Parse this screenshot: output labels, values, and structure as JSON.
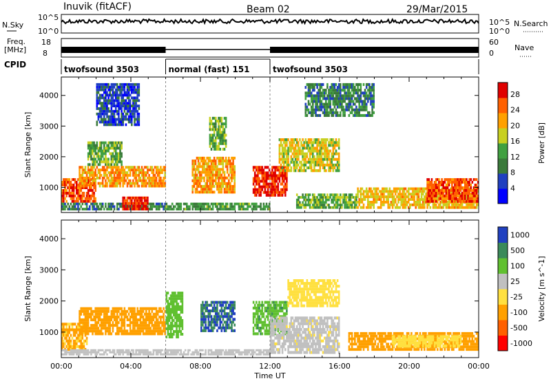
{
  "header": {
    "station": "Inuvik (fitACF)",
    "beam": "Beam 02",
    "date": "29/Mar/2015"
  },
  "strip_labels": {
    "nsky": "N.Sky",
    "nsky_tick_hi": "10^5",
    "nsky_tick_lo": "10^0",
    "nsearch": "N.Search",
    "nsearch_tick_hi": "10^5",
    "nsearch_tick_lo": "10^0",
    "freq_line1": "Freq.",
    "freq_line2": "[MHz]",
    "freq_tick_hi": "18",
    "freq_tick_lo": "8",
    "nave": "Nave",
    "nave_tick_hi": "60",
    "nave_tick_lo": "0",
    "cpid": "CPID"
  },
  "cpid_segments": [
    {
      "label": "twofsound 3503",
      "start_h": 0,
      "end_h": 6
    },
    {
      "label": "normal (fast) 151",
      "start_h": 6,
      "end_h": 12
    },
    {
      "label": "twofsound 3503",
      "start_h": 12,
      "end_h": 24
    }
  ],
  "chart_data": [
    {
      "type": "heatmap",
      "panel": "power",
      "ylabel": "Slant Range [km]",
      "y_ticks": [
        "1000",
        "2000",
        "3000",
        "4000"
      ],
      "y_tick_values": [
        1000,
        2000,
        3000,
        4000
      ],
      "ylim": [
        180,
        4600
      ],
      "xlim": [
        0,
        24
      ],
      "colorbar_label": "Power [dB]",
      "colorbar_ticks": [
        "4",
        "8",
        "12",
        "16",
        "20",
        "24",
        "28"
      ],
      "colorbar_tick_values": [
        4,
        8,
        12,
        16,
        20,
        24,
        28
      ],
      "colorbar_range": [
        0,
        31
      ],
      "colors": [
        "#0000ff",
        "#2040c0",
        "#3a7a3a",
        "#40a040",
        "#c8d020",
        "#ffa000",
        "#ff6000",
        "#e00000"
      ],
      "scatter_regions": [
        {
          "t0": 0.0,
          "t1": 2.0,
          "r0": 500,
          "r1": 1300,
          "value": 26
        },
        {
          "t0": 0.0,
          "t1": 6.0,
          "r0": 250,
          "r1": 500,
          "value": 10
        },
        {
          "t0": 1.0,
          "t1": 6.0,
          "r0": 1000,
          "r1": 1700,
          "value": 22
        },
        {
          "t0": 1.5,
          "t1": 3.5,
          "r0": 1700,
          "r1": 2500,
          "value": 14
        },
        {
          "t0": 3.5,
          "t1": 5.0,
          "r0": 250,
          "r1": 700,
          "value": 28
        },
        {
          "t0": 2.0,
          "t1": 4.5,
          "r0": 3000,
          "r1": 4400,
          "value": 6
        },
        {
          "t0": 7.5,
          "t1": 10.0,
          "r0": 800,
          "r1": 2000,
          "value": 22
        },
        {
          "t0": 8.5,
          "t1": 9.5,
          "r0": 2200,
          "r1": 3300,
          "value": 14
        },
        {
          "t0": 6.0,
          "t1": 12.0,
          "r0": 250,
          "r1": 500,
          "value": 12
        },
        {
          "t0": 11.0,
          "t1": 13.0,
          "r0": 700,
          "r1": 1700,
          "value": 28
        },
        {
          "t0": 12.5,
          "t1": 16.0,
          "r0": 1500,
          "r1": 2600,
          "value": 18
        },
        {
          "t0": 13.5,
          "t1": 17.0,
          "r0": 300,
          "r1": 800,
          "value": 14
        },
        {
          "t0": 17.0,
          "t1": 24.0,
          "r0": 300,
          "r1": 1000,
          "value": 20
        },
        {
          "t0": 21.0,
          "t1": 24.0,
          "r0": 500,
          "r1": 1300,
          "value": 26
        },
        {
          "t0": 14.0,
          "t1": 18.0,
          "r0": 3300,
          "r1": 4400,
          "value": 10
        }
      ]
    },
    {
      "type": "heatmap",
      "panel": "velocity",
      "ylabel": "Slant Range [km]",
      "xlabel": "Time UT",
      "x_ticks": [
        "00:00",
        "04:00",
        "08:00",
        "12:00",
        "16:00",
        "20:00",
        "00:00"
      ],
      "x_tick_values": [
        0,
        4,
        8,
        12,
        16,
        20,
        24
      ],
      "y_ticks": [
        "1000",
        "2000",
        "3000",
        "4000"
      ],
      "y_tick_values": [
        1000,
        2000,
        3000,
        4000
      ],
      "ylim": [
        180,
        4600
      ],
      "xlim": [
        0,
        24
      ],
      "colorbar_label": "Velocity [m s^-1]",
      "colorbar_ticks": [
        "1000",
        "500",
        "100",
        "25",
        "-25",
        "-100",
        "-500",
        "-1000"
      ],
      "colors": [
        "#ff0000",
        "#ff6000",
        "#ffa000",
        "#ffe040",
        "#c0c0c0",
        "#60c030",
        "#3a8a5a",
        "#2040c0"
      ],
      "scatter_regions": [
        {
          "t0": 0.0,
          "t1": 1.5,
          "r0": 400,
          "r1": 1300,
          "value": -40
        },
        {
          "t0": 1.0,
          "t1": 6.0,
          "r0": 900,
          "r1": 1800,
          "value": -60
        },
        {
          "t0": 6.0,
          "t1": 7.0,
          "r0": 800,
          "r1": 2300,
          "value": 200
        },
        {
          "t0": 8.0,
          "t1": 10.0,
          "r0": 1000,
          "r1": 2000,
          "value": 1000
        },
        {
          "t0": 11.0,
          "t1": 13.0,
          "r0": 900,
          "r1": 2000,
          "value": 400
        },
        {
          "t0": 12.0,
          "t1": 16.0,
          "r0": 300,
          "r1": 1500,
          "value": 50
        },
        {
          "t0": 13.0,
          "t1": 16.0,
          "r0": 1800,
          "r1": 2700,
          "value": 0
        },
        {
          "t0": 16.5,
          "t1": 24.0,
          "r0": 400,
          "r1": 1000,
          "value": -60
        },
        {
          "t0": 19.0,
          "t1": 23.0,
          "r0": 500,
          "r1": 900,
          "value": 0
        },
        {
          "t0": 0.0,
          "t1": 12.0,
          "r0": 250,
          "r1": 450,
          "value": 60
        }
      ]
    }
  ]
}
